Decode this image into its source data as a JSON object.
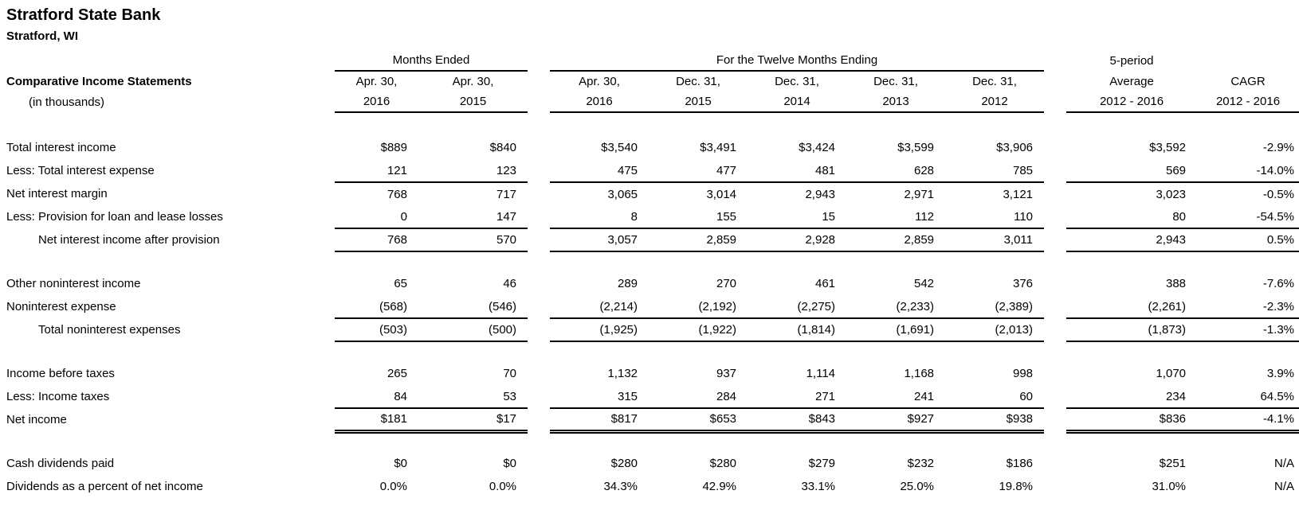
{
  "page": {
    "title": "Stratford State Bank",
    "subtitle": "Stratford, WI",
    "statement_title": "Comparative Income Statements",
    "statement_unit": "(in thousands)"
  },
  "table": {
    "groups": {
      "months_ended": "Months Ended",
      "twelve_months": "For the Twelve Months Ending",
      "five_period": "5-period"
    },
    "columns": [
      {
        "line1": "Apr. 30,",
        "line2": "2016"
      },
      {
        "line1": "Apr. 30,",
        "line2": "2015"
      },
      {
        "line1": "Apr. 30,",
        "line2": "2016"
      },
      {
        "line1": "Dec. 31,",
        "line2": "2015"
      },
      {
        "line1": "Dec. 31,",
        "line2": "2014"
      },
      {
        "line1": "Dec. 31,",
        "line2": "2013"
      },
      {
        "line1": "Dec. 31,",
        "line2": "2012"
      },
      {
        "line1": "Average",
        "line2": "2012 - 2016"
      },
      {
        "line1": "CAGR",
        "line2": "2012 - 2016"
      }
    ],
    "rows": [
      {
        "label": "Total interest income",
        "values": [
          "$889",
          "$840",
          "$3,540",
          "$3,491",
          "$3,424",
          "$3,599",
          "$3,906",
          "$3,592",
          "-2.9%"
        ]
      },
      {
        "label": "Less: Total interest expense",
        "rule": "single",
        "values": [
          "121",
          "123",
          "475",
          "477",
          "481",
          "628",
          "785",
          "569",
          "-14.0%"
        ]
      },
      {
        "label": "Net interest margin",
        "values": [
          "768",
          "717",
          "3,065",
          "3,014",
          "2,943",
          "2,971",
          "3,121",
          "3,023",
          "-0.5%"
        ]
      },
      {
        "label": "Less: Provision for loan and lease losses",
        "rule": "single",
        "values": [
          "0",
          "147",
          "8",
          "155",
          "15",
          "112",
          "110",
          "80",
          "-54.5%"
        ]
      },
      {
        "label": "Net interest income after provision",
        "indent": true,
        "rule": "single",
        "values": [
          "768",
          "570",
          "3,057",
          "2,859",
          "2,928",
          "2,859",
          "3,011",
          "2,943",
          "0.5%"
        ]
      },
      {
        "blank": true
      },
      {
        "label": "Other noninterest income",
        "values": [
          "65",
          "46",
          "289",
          "270",
          "461",
          "542",
          "376",
          "388",
          "-7.6%"
        ]
      },
      {
        "label": "Noninterest expense",
        "rule": "single",
        "values": [
          "(568)",
          "(546)",
          "(2,214)",
          "(2,192)",
          "(2,275)",
          "(2,233)",
          "(2,389)",
          "(2,261)",
          "-2.3%"
        ]
      },
      {
        "label": "Total noninterest expenses",
        "indent": true,
        "rule": "single",
        "values": [
          "(503)",
          "(500)",
          "(1,925)",
          "(1,922)",
          "(1,814)",
          "(1,691)",
          "(2,013)",
          "(1,873)",
          "-1.3%"
        ]
      },
      {
        "blank": true
      },
      {
        "label": "Income before taxes",
        "values": [
          "265",
          "70",
          "1,132",
          "937",
          "1,114",
          "1,168",
          "998",
          "1,070",
          "3.9%"
        ]
      },
      {
        "label": "Less: Income taxes",
        "rule": "single",
        "values": [
          "84",
          "53",
          "315",
          "284",
          "271",
          "241",
          "60",
          "234",
          "64.5%"
        ]
      },
      {
        "label": "Net income",
        "rule": "double",
        "values": [
          "$181",
          "$17",
          "$817",
          "$653",
          "$843",
          "$927",
          "$938",
          "$836",
          "-4.1%"
        ]
      },
      {
        "blank": true
      },
      {
        "label": "Cash dividends paid",
        "values": [
          "$0",
          "$0",
          "$280",
          "$280",
          "$279",
          "$232",
          "$186",
          "$251",
          "N/A"
        ]
      },
      {
        "label": "Dividends as a percent of net income",
        "values": [
          "0.0%",
          "0.0%",
          "34.3%",
          "42.9%",
          "33.1%",
          "25.0%",
          "19.8%",
          "31.0%",
          "N/A"
        ]
      }
    ]
  }
}
